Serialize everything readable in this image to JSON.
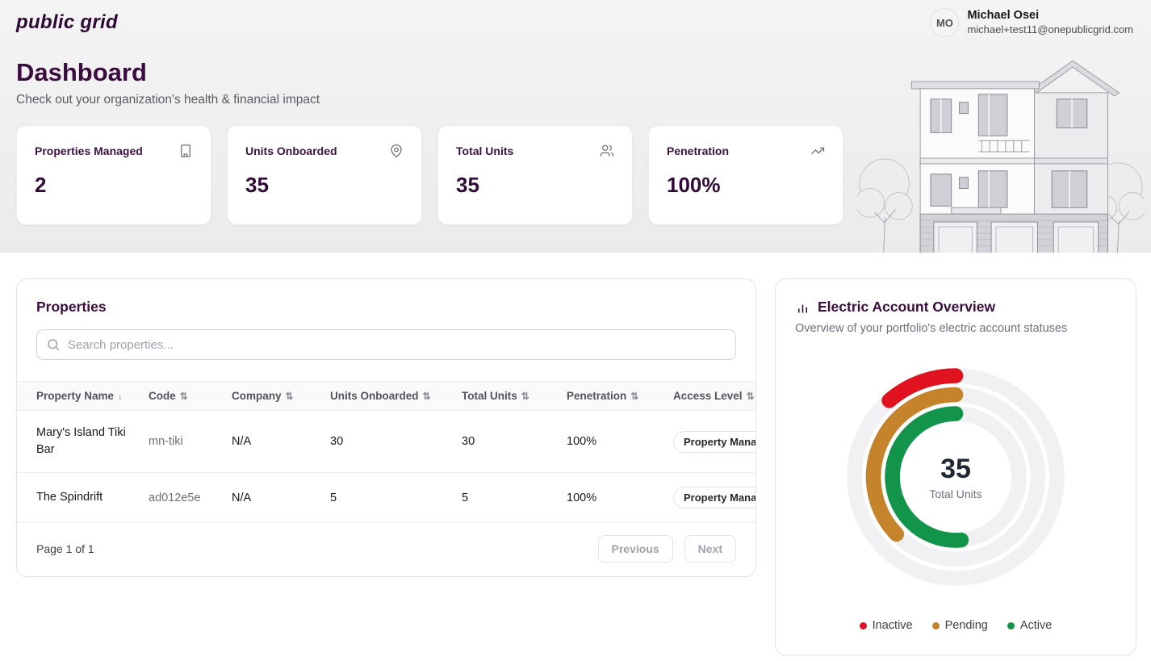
{
  "brand": {
    "logo_text": "public grid"
  },
  "user": {
    "initials": "MO",
    "name": "Michael Osei",
    "email": "michael+test11@onepublicgrid.com"
  },
  "page": {
    "title": "Dashboard",
    "subtitle": "Check out your organization's health & financial impact"
  },
  "icons": {
    "sort_both": "⇅",
    "sort_desc": "↓"
  },
  "stats": [
    {
      "label": "Properties Managed",
      "value": "2",
      "icon": "building-icon"
    },
    {
      "label": "Units Onboarded",
      "value": "35",
      "icon": "map-pin-icon"
    },
    {
      "label": "Total Units",
      "value": "35",
      "icon": "users-icon"
    },
    {
      "label": "Penetration",
      "value": "100%",
      "icon": "trending-up-icon"
    }
  ],
  "properties_panel": {
    "title": "Properties",
    "search_placeholder": "Search properties...",
    "table": {
      "columns": [
        "Property Name",
        "Code",
        "Company",
        "Units Onboarded",
        "Total Units",
        "Penetration",
        "Access Level"
      ],
      "sorted_column": "Property Name",
      "rows": [
        {
          "property_name": "Mary's Island Tiki Bar",
          "code": "mn-tiki",
          "company": "N/A",
          "units_onboarded": "30",
          "total_units": "30",
          "penetration": "100%",
          "access_level": "Property Manager"
        },
        {
          "property_name": "The Spindrift",
          "code": "ad012e5e",
          "company": "N/A",
          "units_onboarded": "5",
          "total_units": "5",
          "penetration": "100%",
          "access_level": "Property Manager"
        }
      ]
    },
    "pagination": {
      "status": "Page 1 of 1",
      "previous_label": "Previous",
      "next_label": "Next"
    }
  },
  "electric_panel": {
    "title": "Electric Account Overview",
    "subtitle": "Overview of your portfolio's electric account statuses"
  },
  "chart_data": {
    "type": "radial-bar",
    "title": "Electric Account Overview",
    "center": {
      "value": 35,
      "label": "Total Units"
    },
    "total_units": 35,
    "scale_max": 35,
    "start_angle_deg": 0,
    "direction": "counterclockwise",
    "track_color": "#f1f1f3",
    "ring_radii": [
      128,
      104,
      80
    ],
    "ring_stroke": 19,
    "legend_position": "bottom",
    "series": [
      {
        "name": "Inactive",
        "value": 4,
        "sweep_deg": 41,
        "color": "#e01220"
      },
      {
        "name": "Pending",
        "value": 13,
        "sweep_deg": 134,
        "color": "#c5832b"
      },
      {
        "name": "Active",
        "value": 18,
        "sweep_deg": 185,
        "color": "#13944b"
      }
    ]
  }
}
